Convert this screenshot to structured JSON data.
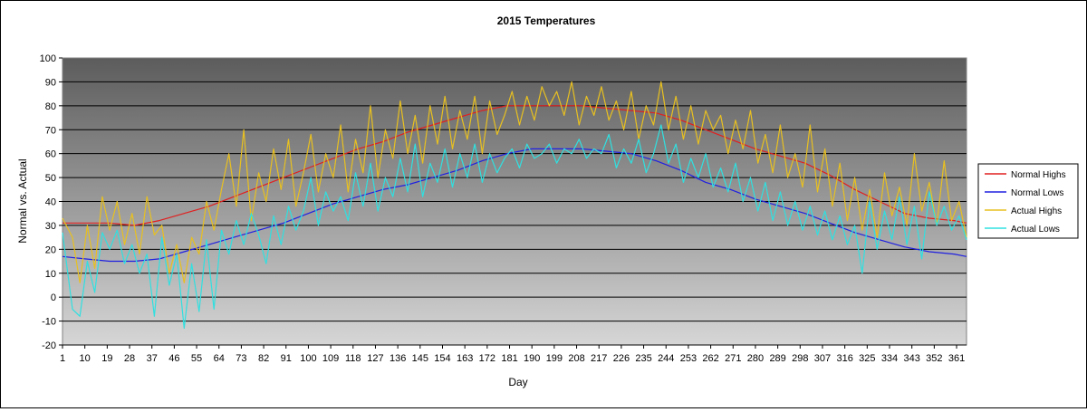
{
  "chart_data": {
    "type": "line",
    "title": "2015 Temperatures",
    "xlabel": "Day",
    "ylabel": "Normal vs. Actual",
    "ylim": [
      -20,
      100
    ],
    "yticks": [
      "100",
      "90",
      "80",
      "70",
      "60",
      "50",
      "40",
      "30",
      "20",
      "10",
      "0",
      "-10",
      "-20"
    ],
    "xlim": [
      1,
      365
    ],
    "xticks": [
      "1",
      "10",
      "19",
      "28",
      "37",
      "46",
      "55",
      "64",
      "73",
      "82",
      "91",
      "100",
      "109",
      "118",
      "127",
      "136",
      "145",
      "154",
      "163",
      "172",
      "181",
      "190",
      "199",
      "208",
      "217",
      "226",
      "235",
      "244",
      "253",
      "262",
      "271",
      "280",
      "289",
      "298",
      "307",
      "316",
      "325",
      "334",
      "343",
      "352",
      "361"
    ],
    "grid": true,
    "legend_position": "right",
    "series": [
      {
        "name": "Normal Highs",
        "color": "#e02020",
        "x": [
          1,
          10,
          20,
          30,
          40,
          50,
          60,
          70,
          80,
          90,
          100,
          110,
          120,
          130,
          140,
          150,
          160,
          170,
          180,
          190,
          200,
          210,
          220,
          230,
          240,
          250,
          260,
          270,
          280,
          290,
          300,
          310,
          320,
          330,
          340,
          350,
          360,
          365
        ],
        "values": [
          31,
          31,
          31,
          30,
          32,
          35,
          38,
          42,
          46,
          50,
          54,
          58,
          62,
          65,
          69,
          72,
          75,
          78,
          80,
          80,
          80,
          80,
          79,
          78,
          77,
          74,
          70,
          66,
          62,
          59,
          56,
          51,
          45,
          40,
          35,
          33,
          32,
          31
        ]
      },
      {
        "name": "Normal Lows",
        "color": "#2020e0",
        "x": [
          1,
          10,
          20,
          30,
          40,
          50,
          60,
          70,
          80,
          90,
          100,
          110,
          120,
          130,
          140,
          150,
          160,
          170,
          180,
          190,
          200,
          210,
          220,
          230,
          240,
          250,
          260,
          270,
          280,
          290,
          300,
          310,
          320,
          330,
          340,
          350,
          360,
          365
        ],
        "values": [
          17,
          16,
          15,
          15,
          16,
          19,
          22,
          25,
          28,
          31,
          35,
          39,
          42,
          45,
          47,
          50,
          53,
          57,
          60,
          62,
          62,
          62,
          61,
          60,
          57,
          53,
          48,
          45,
          41,
          38,
          35,
          31,
          27,
          24,
          21,
          19,
          18,
          17
        ]
      },
      {
        "name": "Actual Highs",
        "color": "#e8c020",
        "x": [
          1,
          5,
          8,
          11,
          14,
          17,
          20,
          23,
          26,
          29,
          32,
          35,
          38,
          41,
          44,
          47,
          50,
          53,
          56,
          59,
          62,
          65,
          68,
          71,
          74,
          77,
          80,
          83,
          86,
          89,
          92,
          95,
          98,
          101,
          104,
          107,
          110,
          113,
          116,
          119,
          122,
          125,
          128,
          131,
          134,
          137,
          140,
          143,
          146,
          149,
          152,
          155,
          158,
          161,
          164,
          167,
          170,
          173,
          176,
          179,
          182,
          185,
          188,
          191,
          194,
          197,
          200,
          203,
          206,
          209,
          212,
          215,
          218,
          221,
          224,
          227,
          230,
          233,
          236,
          239,
          242,
          245,
          248,
          251,
          254,
          257,
          260,
          263,
          266,
          269,
          272,
          275,
          278,
          281,
          284,
          287,
          290,
          293,
          296,
          299,
          302,
          305,
          308,
          311,
          314,
          317,
          320,
          323,
          326,
          329,
          332,
          335,
          338,
          341,
          344,
          347,
          350,
          353,
          356,
          359,
          362,
          365
        ],
        "values": [
          33,
          25,
          6,
          30,
          12,
          42,
          28,
          40,
          22,
          35,
          18,
          42,
          26,
          30,
          10,
          22,
          6,
          25,
          18,
          40,
          28,
          45,
          60,
          38,
          70,
          32,
          52,
          40,
          62,
          45,
          66,
          38,
          52,
          68,
          44,
          60,
          50,
          72,
          44,
          66,
          52,
          80,
          50,
          70,
          58,
          82,
          60,
          76,
          56,
          80,
          64,
          84,
          62,
          78,
          66,
          84,
          60,
          82,
          68,
          76,
          86,
          72,
          84,
          74,
          88,
          80,
          86,
          76,
          90,
          72,
          84,
          76,
          88,
          74,
          82,
          70,
          86,
          66,
          80,
          72,
          90,
          70,
          84,
          66,
          80,
          64,
          78,
          70,
          76,
          60,
          74,
          62,
          78,
          56,
          68,
          52,
          72,
          50,
          60,
          46,
          72,
          44,
          62,
          38,
          56,
          32,
          50,
          28,
          45,
          25,
          52,
          34,
          46,
          30,
          60,
          36,
          48,
          30,
          57,
          32,
          40,
          25
        ]
      },
      {
        "name": "Actual Lows",
        "color": "#30e0e0",
        "x": [
          1,
          5,
          8,
          11,
          14,
          17,
          20,
          23,
          26,
          29,
          32,
          35,
          38,
          41,
          44,
          47,
          50,
          53,
          56,
          59,
          62,
          65,
          68,
          71,
          74,
          77,
          80,
          83,
          86,
          89,
          92,
          95,
          98,
          101,
          104,
          107,
          110,
          113,
          116,
          119,
          122,
          125,
          128,
          131,
          134,
          137,
          140,
          143,
          146,
          149,
          152,
          155,
          158,
          161,
          164,
          167,
          170,
          173,
          176,
          179,
          182,
          185,
          188,
          191,
          194,
          197,
          200,
          203,
          206,
          209,
          212,
          215,
          218,
          221,
          224,
          227,
          230,
          233,
          236,
          239,
          242,
          245,
          248,
          251,
          254,
          257,
          260,
          263,
          266,
          269,
          272,
          275,
          278,
          281,
          284,
          287,
          290,
          293,
          296,
          299,
          302,
          305,
          308,
          311,
          314,
          317,
          320,
          323,
          326,
          329,
          332,
          335,
          338,
          341,
          344,
          347,
          350,
          353,
          356,
          359,
          362,
          365
        ],
        "values": [
          27,
          -5,
          -8,
          15,
          2,
          27,
          20,
          28,
          14,
          22,
          10,
          18,
          -8,
          25,
          5,
          18,
          -13,
          14,
          -6,
          24,
          -5,
          28,
          18,
          32,
          22,
          35,
          26,
          14,
          34,
          22,
          38,
          28,
          36,
          50,
          30,
          44,
          36,
          42,
          32,
          52,
          38,
          56,
          36,
          50,
          42,
          58,
          44,
          64,
          42,
          56,
          48,
          62,
          46,
          60,
          50,
          64,
          48,
          60,
          52,
          58,
          62,
          54,
          64,
          58,
          60,
          64,
          56,
          62,
          60,
          66,
          58,
          62,
          60,
          68,
          54,
          62,
          56,
          66,
          52,
          60,
          72,
          56,
          64,
          48,
          58,
          50,
          60,
          46,
          54,
          44,
          56,
          40,
          50,
          36,
          48,
          32,
          44,
          30,
          40,
          28,
          38,
          26,
          36,
          24,
          34,
          22,
          30,
          10,
          40,
          20,
          36,
          24,
          42,
          22,
          38,
          16,
          44,
          30,
          38,
          28,
          34,
          24
        ]
      }
    ]
  }
}
